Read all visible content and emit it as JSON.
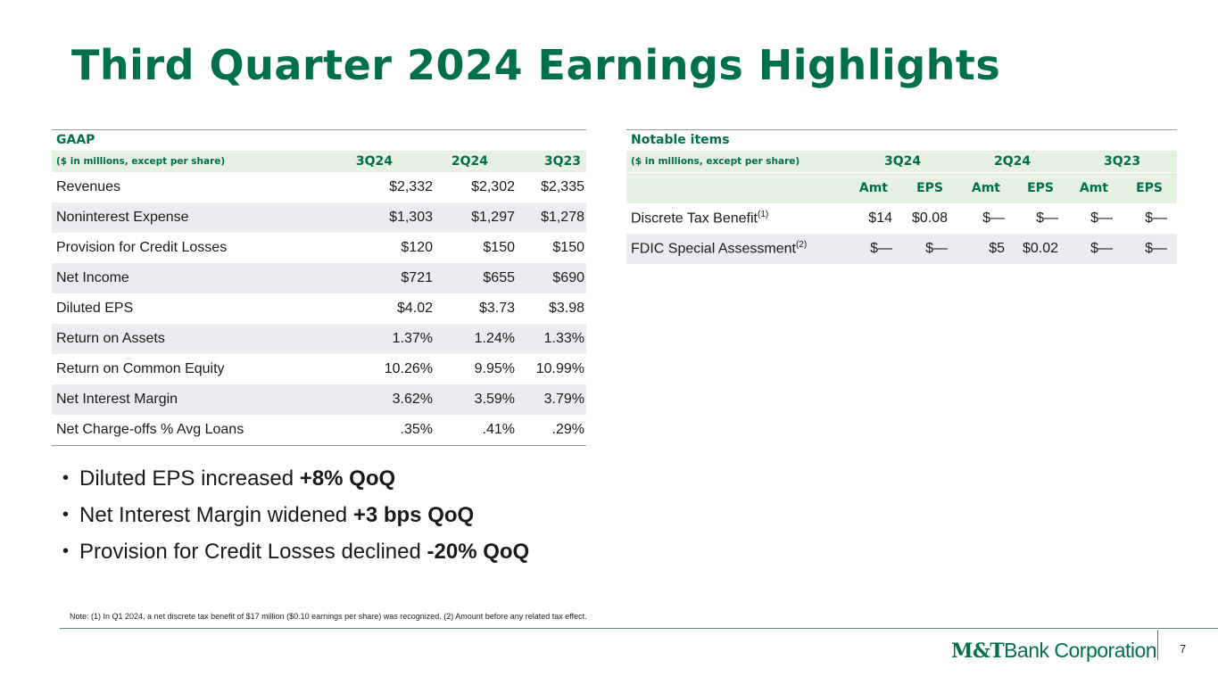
{
  "title": "Third Quarter 2024 Earnings Highlights",
  "gaap": {
    "heading": "GAAP",
    "subheading": "($ in millions, except per share)",
    "columns": [
      "3Q24",
      "2Q24",
      "3Q23"
    ],
    "rows": [
      {
        "label": "Revenues",
        "values": [
          "$2,332",
          "$2,302",
          "$2,335"
        ]
      },
      {
        "label": "Noninterest Expense",
        "values": [
          "$1,303",
          "$1,297",
          "$1,278"
        ]
      },
      {
        "label": "Provision for Credit Losses",
        "values": [
          "$120",
          "$150",
          "$150"
        ]
      },
      {
        "label": "Net Income",
        "values": [
          "$721",
          "$655",
          "$690"
        ]
      },
      {
        "label": "Diluted EPS",
        "values": [
          "$4.02",
          "$3.73",
          "$3.98"
        ]
      },
      {
        "label": "Return on Assets",
        "values": [
          "1.37%",
          "1.24%",
          "1.33%"
        ]
      },
      {
        "label": "Return on Common Equity",
        "values": [
          "10.26%",
          "9.95%",
          "10.99%"
        ]
      },
      {
        "label": "Net Interest Margin",
        "values": [
          "3.62%",
          "3.59%",
          "3.79%"
        ]
      },
      {
        "label": "Net Charge-offs % Avg Loans",
        "values": [
          ".35%",
          ".41%",
          ".29%"
        ]
      }
    ]
  },
  "notable": {
    "heading": "Notable items",
    "subheading": "($ in millions, except per share)",
    "columns": [
      "3Q24",
      "2Q24",
      "3Q23"
    ],
    "subcolumns": [
      "Amt",
      "EPS",
      "Amt",
      "EPS",
      "Amt",
      "EPS"
    ],
    "rows": [
      {
        "label": "Discrete Tax Benefit",
        "footnote": "(1)",
        "values": [
          "$14",
          "$0.08",
          "$—",
          "$—",
          "$—",
          "$—"
        ]
      },
      {
        "label": "FDIC Special Assessment",
        "footnote": "(2)",
        "values": [
          "$—",
          "$—",
          "$5",
          "$0.02",
          "$—",
          "$—"
        ]
      }
    ]
  },
  "bullets": [
    {
      "text": "Diluted EPS increased ",
      "bold": "+8% QoQ"
    },
    {
      "text": "Net Interest Margin widened ",
      "bold": "+3 bps QoQ"
    },
    {
      "text": "Provision for Credit Losses declined ",
      "bold": "-20% QoQ"
    }
  ],
  "note": "Note: (1) In Q1 2024, a net discrete tax benefit of $17 million ($0.10 earnings per share) was recognized. (2) Amount before any related tax effect.",
  "logo": {
    "mark": "M&T",
    "word": "Bank Corporation"
  },
  "page_number": "7",
  "colors": {
    "brand_green": "#00704a",
    "header_bg": "#e6f1e2",
    "row_alt": "#ececf0"
  }
}
